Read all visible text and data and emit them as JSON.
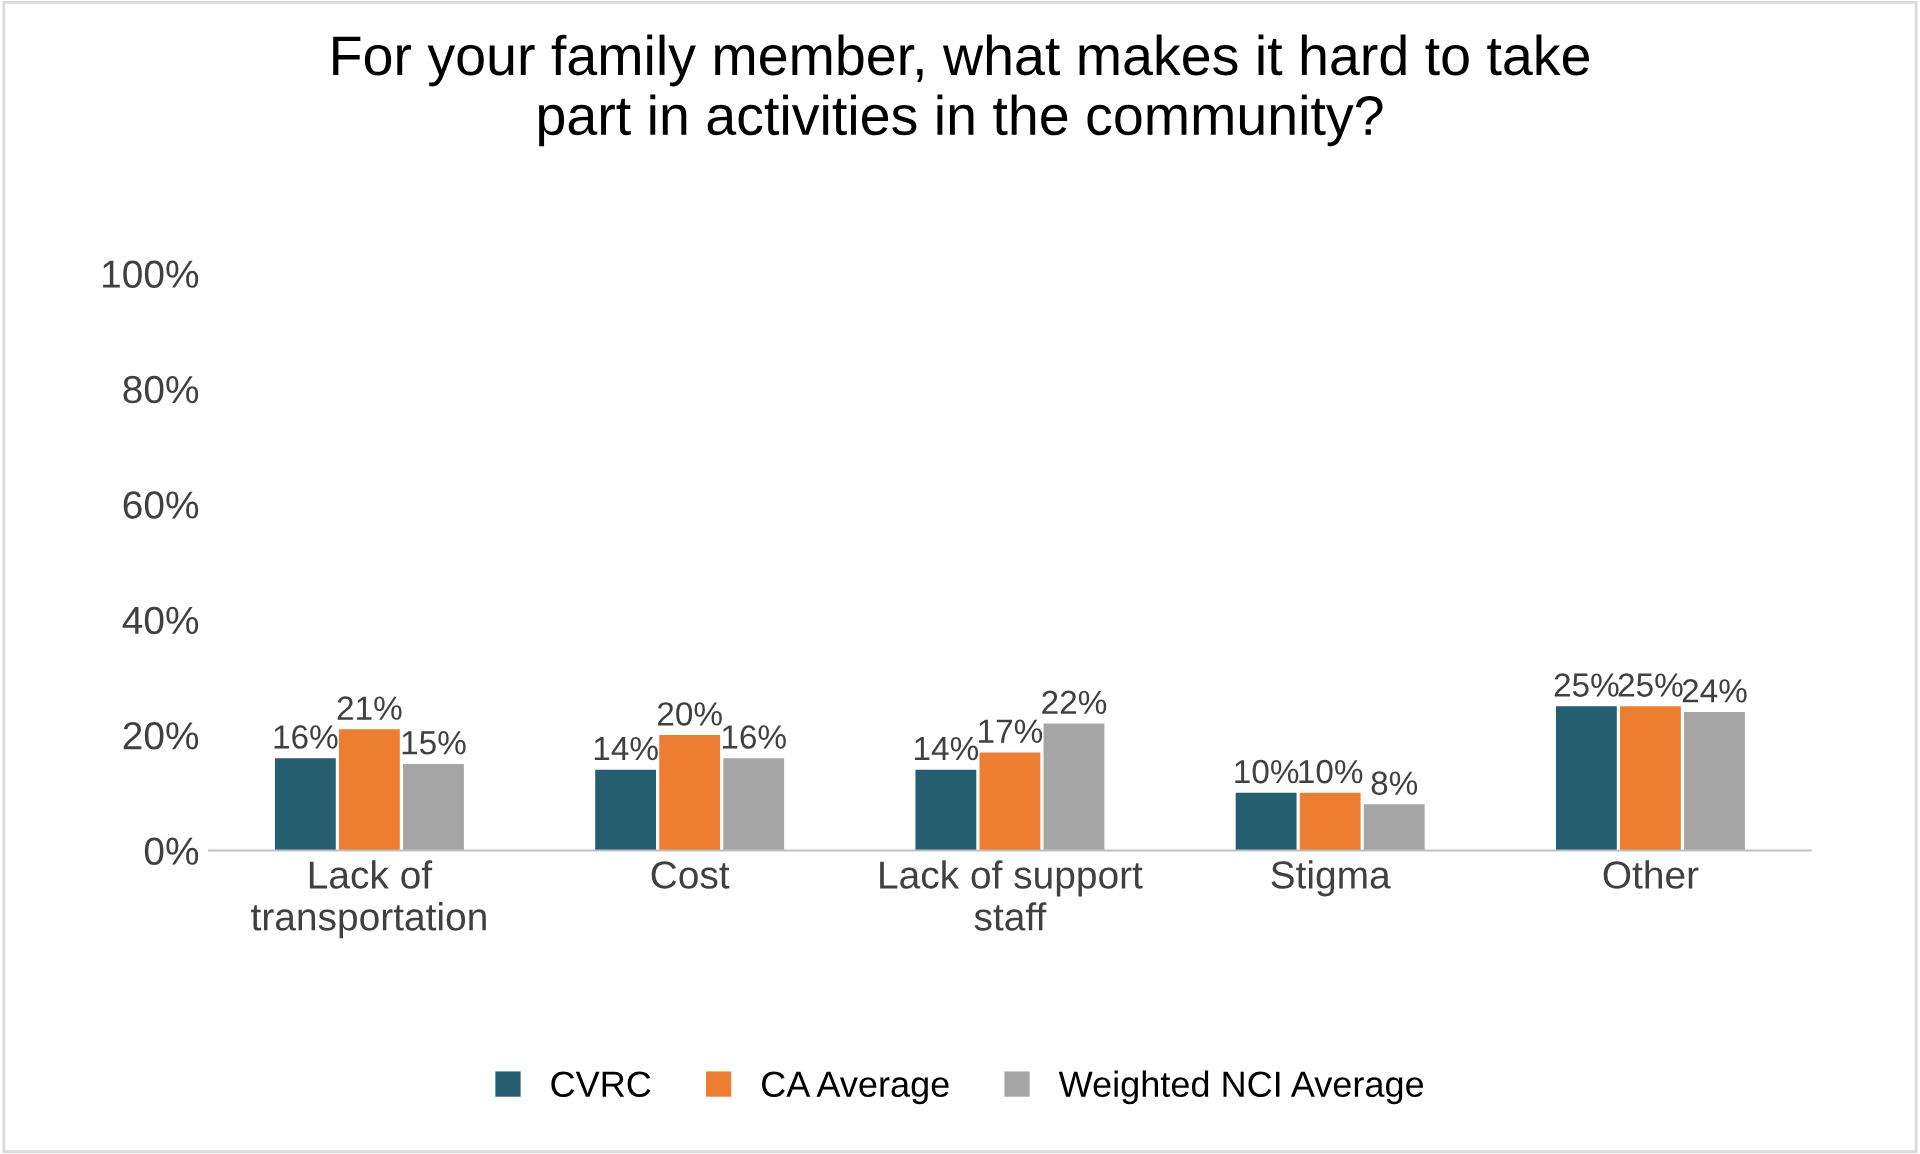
{
  "chart_data": {
    "type": "bar",
    "title": "For your family member, what makes it hard to take\npart in activities in the community?",
    "categories": [
      "Lack of\ntransportation",
      "Cost",
      "Lack of support\nstaff",
      "Stigma",
      "Other"
    ],
    "series": [
      {
        "name": "CVRC",
        "color": "#255e6f",
        "values": [
          16,
          14,
          14,
          10,
          25
        ],
        "value_labels": [
          "16%",
          "14%",
          "14%",
          "10%",
          "25%"
        ]
      },
      {
        "name": "CA Average",
        "color": "#ed7d31",
        "values": [
          21,
          20,
          17,
          10,
          25
        ],
        "value_labels": [
          "21%",
          "20%",
          "17%",
          "10%",
          "25%"
        ]
      },
      {
        "name": "Weighted NCI Average",
        "color": "#a5a5a5",
        "values": [
          15,
          16,
          22,
          8,
          24
        ],
        "value_labels": [
          "15%",
          "16%",
          "22%",
          "8%",
          "24%"
        ]
      }
    ],
    "ylim": [
      0,
      100
    ],
    "yticks": [
      {
        "value": 0,
        "label": "0%"
      },
      {
        "value": 20,
        "label": "20%"
      },
      {
        "value": 40,
        "label": "40%"
      },
      {
        "value": 60,
        "label": "60%"
      },
      {
        "value": 80,
        "label": "80%"
      },
      {
        "value": 100,
        "label": "100%"
      }
    ],
    "grid": false,
    "legend": "bottom"
  }
}
